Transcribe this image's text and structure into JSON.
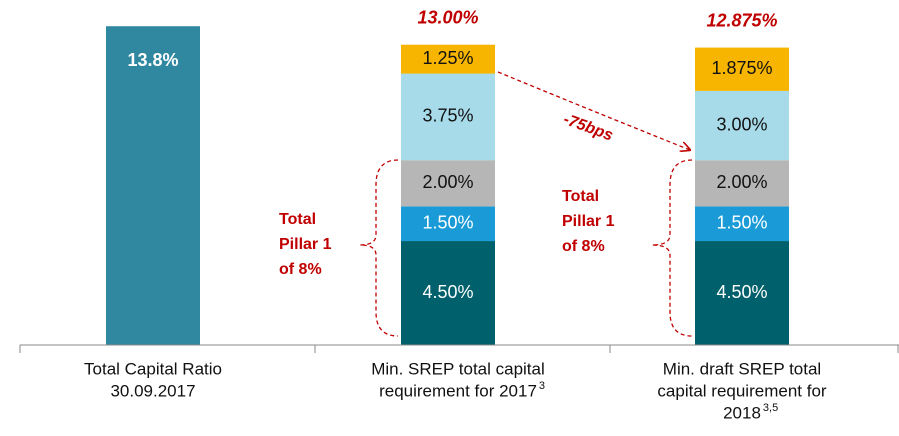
{
  "chart_data": {
    "type": "stacked_bar",
    "categories": [
      [
        "Total Capital Ratio",
        "30.09.2017"
      ],
      [
        "Min. SREP total capital",
        "requirement for 2017"
      ],
      [
        "Min. draft SREP total",
        "capital requirement for",
        "2018"
      ]
    ],
    "category_footnotes": [
      null,
      "3",
      "3,5"
    ],
    "series": [
      {
        "color": "#2f87a0",
        "label_color": "#ffffff",
        "values": [
          13.8,
          null,
          null
        ],
        "value_labels": [
          "13.8%",
          null,
          null
        ]
      },
      {
        "color": "#00606b",
        "label_color": "#ffffff",
        "values": [
          null,
          4.5,
          4.5
        ],
        "value_labels": [
          null,
          "4.50%",
          "4.50%"
        ]
      },
      {
        "color": "#1a9bd7",
        "label_color": "#ffffff",
        "values": [
          null,
          1.5,
          1.5
        ],
        "value_labels": [
          null,
          "1.50%",
          "1.50%"
        ]
      },
      {
        "color": "#b6b6b6",
        "label_color": "#111111",
        "values": [
          null,
          2.0,
          2.0
        ],
        "value_labels": [
          null,
          "2.00%",
          "2.00%"
        ]
      },
      {
        "color": "#a8dbe9",
        "label_color": "#111111",
        "values": [
          null,
          3.75,
          3.0
        ],
        "value_labels": [
          null,
          "3.75%",
          "3.00%"
        ]
      },
      {
        "color": "#f7b500",
        "label_color": "#111111",
        "values": [
          null,
          1.25,
          1.875
        ],
        "value_labels": [
          null,
          "1.25%",
          "1.875%"
        ]
      }
    ],
    "totals": [
      null,
      13.0,
      12.875
    ],
    "total_labels": [
      null,
      "13.00%",
      "12.875%"
    ],
    "annotations": [
      [
        "Total",
        "Pillar 1",
        "of 8%"
      ],
      [
        "Total",
        "Pillar 1",
        "of 8%"
      ],
      "-75bps"
    ],
    "ylim": [
      0,
      15
    ]
  }
}
